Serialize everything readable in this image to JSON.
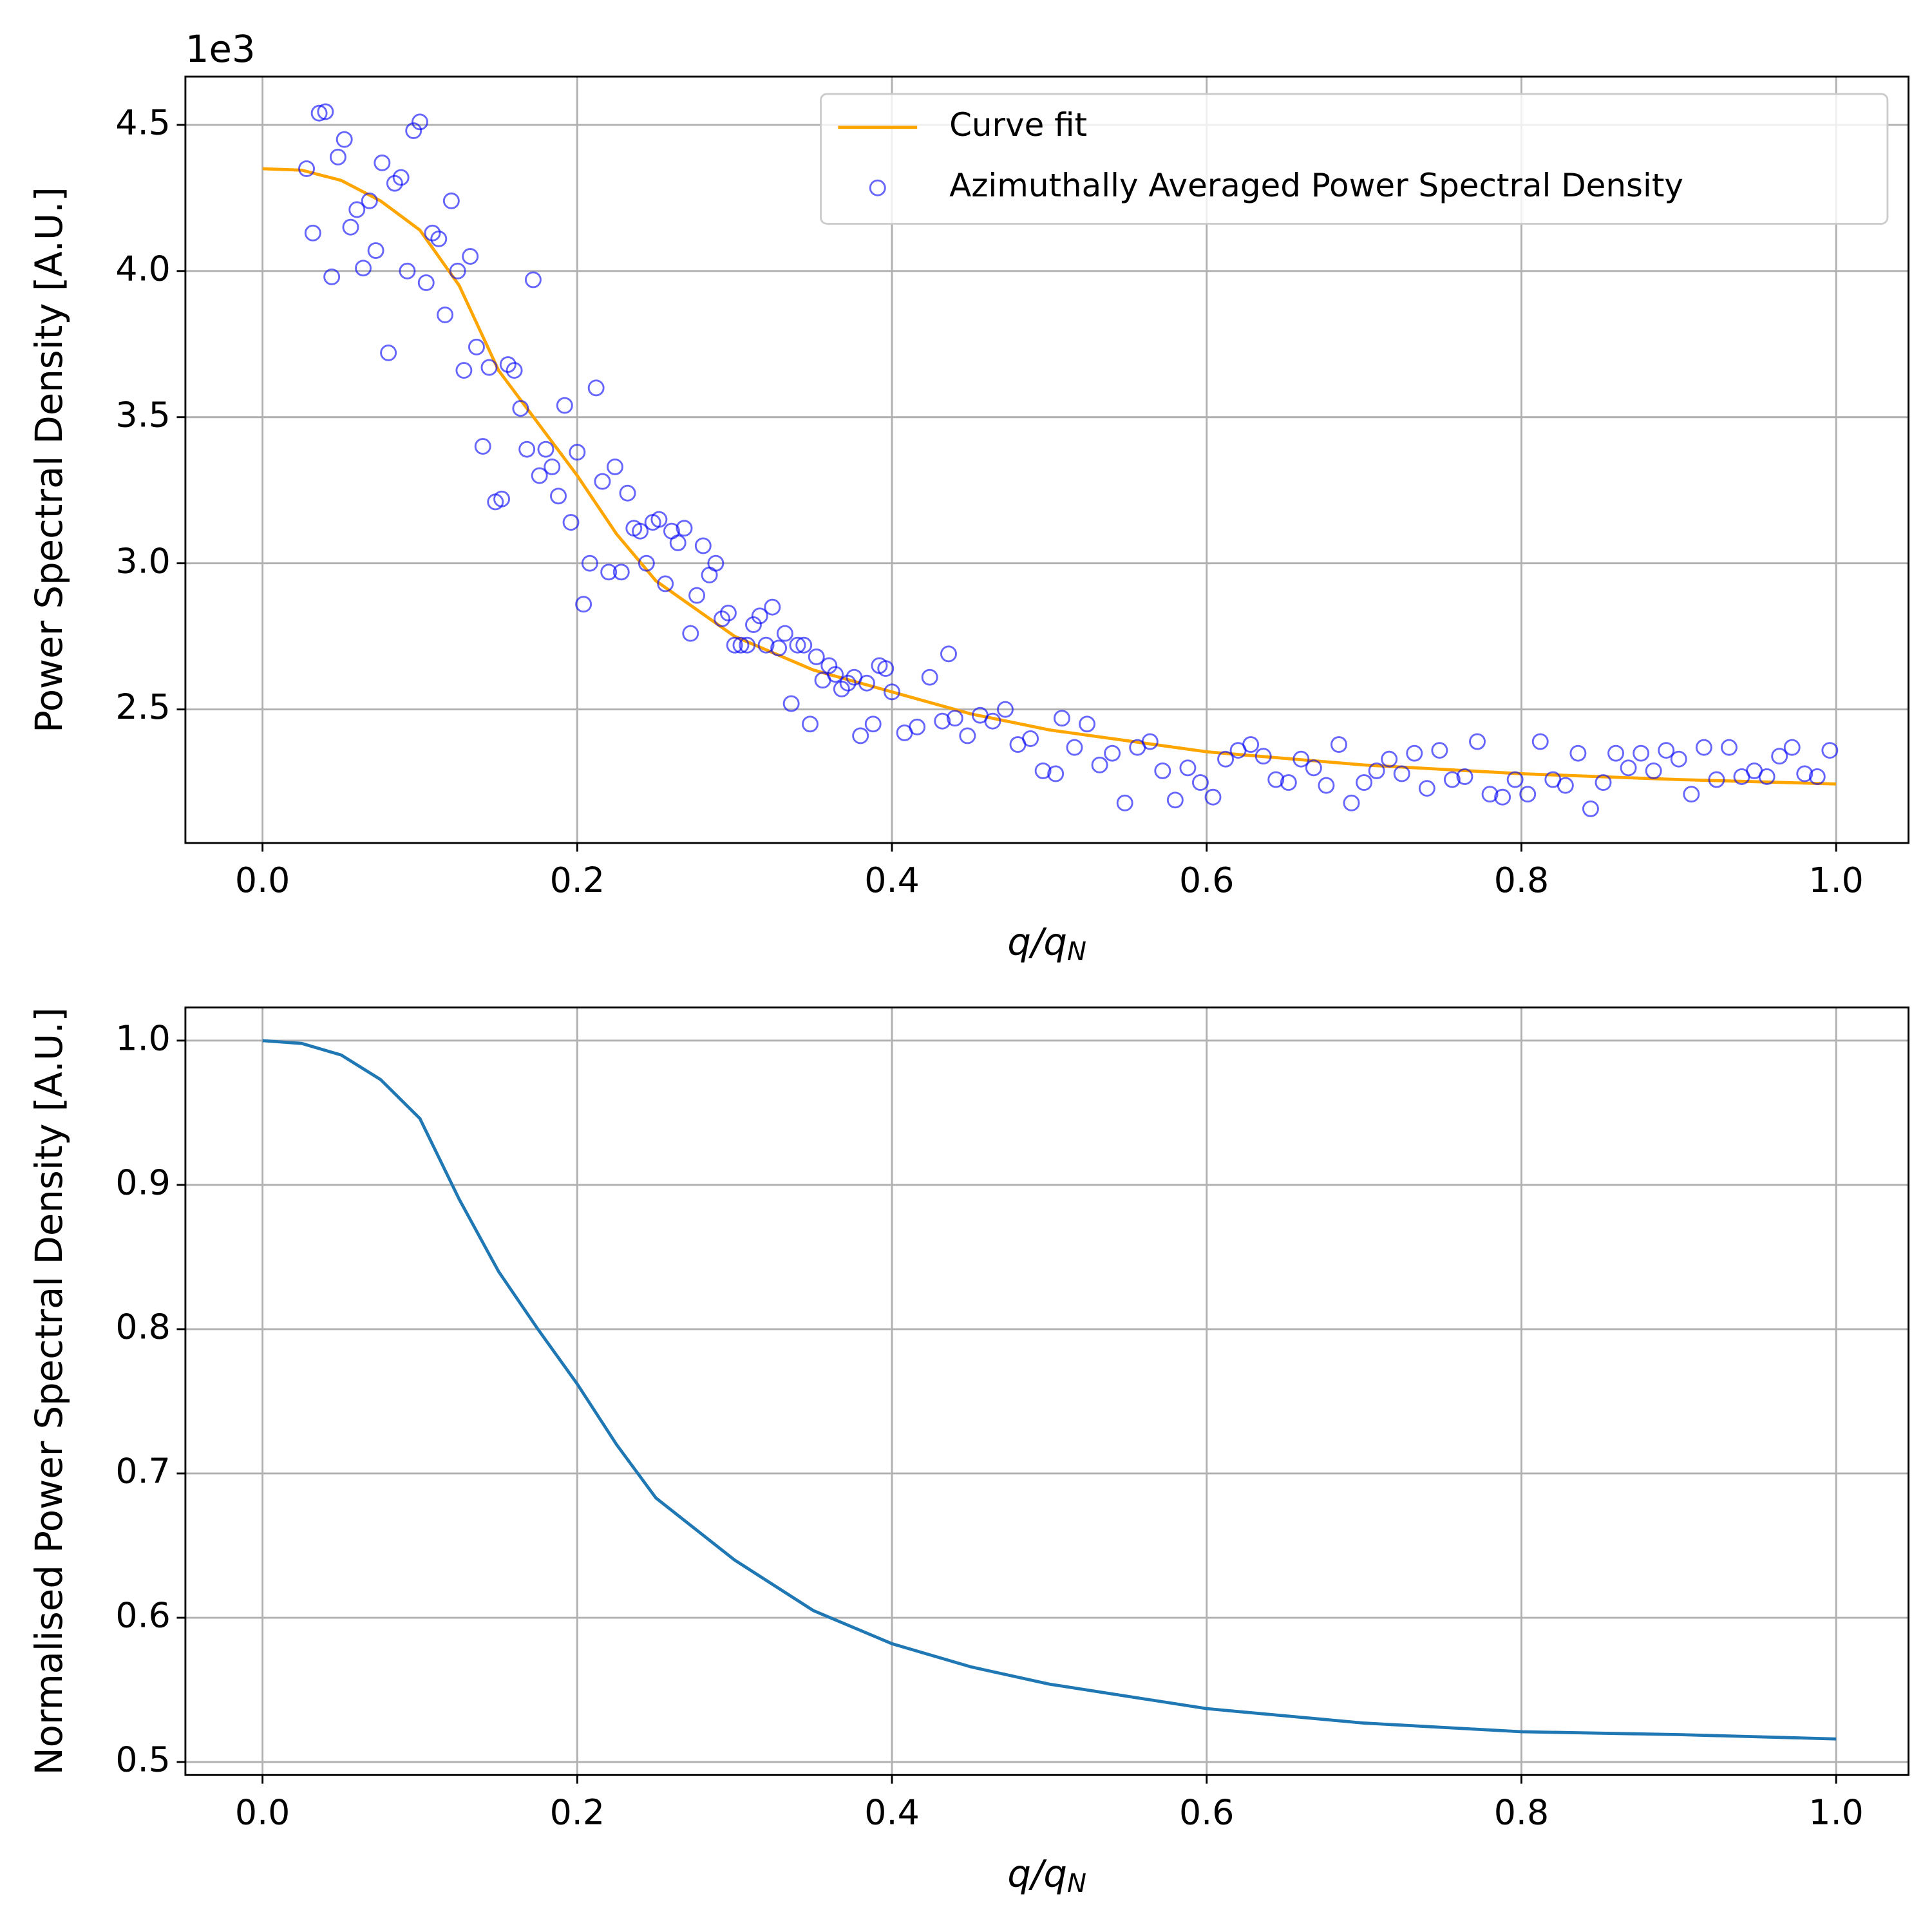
{
  "chart_data": [
    {
      "type": "scatter",
      "ylabel": "Power Spectral Density [A.U.]",
      "xlabel": "q/qN",
      "y_offset_label": "1e3",
      "xlim": [
        -0.049,
        1.046
      ],
      "ylim": [
        2.043,
        4.665
      ],
      "xticks": [
        {
          "value": 0,
          "label": "0.0"
        },
        0.2,
        0.4,
        0.6,
        0.8,
        {
          "value": 1,
          "label": "1.0"
        }
      ],
      "yticks": [
        2.5,
        {
          "value": 3,
          "label": "3.0"
        },
        3.5,
        {
          "value": 4,
          "label": "4.0"
        },
        4.5
      ],
      "grid": true,
      "legend": "upper right",
      "series": [
        {
          "name": "Curve fit",
          "type": "line",
          "color": "#ffa500",
          "x": [
            0,
            0.025,
            0.05,
            0.075,
            0.1,
            0.125,
            0.15,
            0.175,
            0.2,
            0.225,
            0.25,
            0.3,
            0.35,
            0.4,
            0.45,
            0.5,
            0.6,
            0.7,
            0.8,
            0.9,
            1.0
          ],
          "values": [
            4.35,
            4.345,
            4.31,
            4.24,
            4.14,
            3.95,
            3.66,
            3.48,
            3.3,
            3.1,
            2.94,
            2.75,
            2.635,
            2.56,
            2.485,
            2.43,
            2.355,
            2.31,
            2.28,
            2.26,
            2.245
          ]
        },
        {
          "name": "Azimuthally Averaged Power Spectral Density",
          "type": "scatter",
          "color": "#0000ff",
          "x": [
            0.028,
            0.032,
            0.036,
            0.04,
            0.044,
            0.048,
            0.052,
            0.056,
            0.06,
            0.064,
            0.068,
            0.072,
            0.076,
            0.08,
            0.084,
            0.088,
            0.092,
            0.096,
            0.1,
            0.104,
            0.108,
            0.112,
            0.116,
            0.12,
            0.124,
            0.128,
            0.132,
            0.136,
            0.14,
            0.144,
            0.148,
            0.152,
            0.156,
            0.16,
            0.164,
            0.168,
            0.172,
            0.176,
            0.18,
            0.184,
            0.188,
            0.192,
            0.196,
            0.2,
            0.204,
            0.208,
            0.212,
            0.216,
            0.22,
            0.224,
            0.228,
            0.232,
            0.236,
            0.24,
            0.244,
            0.248,
            0.252,
            0.256,
            0.26,
            0.264,
            0.268,
            0.272,
            0.276,
            0.28,
            0.284,
            0.288,
            0.292,
            0.296,
            0.3,
            0.304,
            0.308,
            0.312,
            0.316,
            0.32,
            0.324,
            0.328,
            0.332,
            0.336,
            0.34,
            0.344,
            0.348,
            0.352,
            0.356,
            0.36,
            0.364,
            0.368,
            0.372,
            0.376,
            0.38,
            0.384,
            0.388,
            0.392,
            0.396,
            0.4,
            0.408,
            0.416,
            0.424,
            0.432,
            0.436,
            0.44,
            0.448,
            0.456,
            0.464,
            0.472,
            0.48,
            0.488,
            0.496,
            0.504,
            0.508,
            0.516,
            0.524,
            0.532,
            0.54,
            0.548,
            0.556,
            0.564,
            0.572,
            0.58,
            0.588,
            0.596,
            0.604,
            0.612,
            0.62,
            0.628,
            0.636,
            0.644,
            0.652,
            0.66,
            0.668,
            0.676,
            0.684,
            0.692,
            0.7,
            0.708,
            0.716,
            0.724,
            0.732,
            0.74,
            0.748,
            0.756,
            0.764,
            0.772,
            0.78,
            0.788,
            0.796,
            0.804,
            0.812,
            0.82,
            0.828,
            0.836,
            0.844,
            0.852,
            0.86,
            0.868,
            0.876,
            0.884,
            0.892,
            0.9,
            0.908,
            0.916,
            0.924,
            0.932,
            0.94,
            0.948,
            0.956,
            0.964,
            0.972,
            0.98,
            0.988,
            0.996
          ],
          "values": [
            4.35,
            4.13,
            4.54,
            4.545,
            3.98,
            4.39,
            4.45,
            4.15,
            4.21,
            4.01,
            4.24,
            4.07,
            4.37,
            3.72,
            4.3,
            4.32,
            4.0,
            4.48,
            4.51,
            3.96,
            4.13,
            4.11,
            3.85,
            4.24,
            4.0,
            3.66,
            4.05,
            3.74,
            3.4,
            3.67,
            3.21,
            3.22,
            3.68,
            3.66,
            3.53,
            3.39,
            3.97,
            3.3,
            3.39,
            3.33,
            3.23,
            3.54,
            3.14,
            3.38,
            2.86,
            3.0,
            3.6,
            3.28,
            2.97,
            3.33,
            2.97,
            3.24,
            3.12,
            3.11,
            3.0,
            3.14,
            3.15,
            2.93,
            3.11,
            3.07,
            3.12,
            2.76,
            2.89,
            3.06,
            2.96,
            3.0,
            2.81,
            2.83,
            2.72,
            2.72,
            2.72,
            2.79,
            2.82,
            2.72,
            2.85,
            2.71,
            2.76,
            2.52,
            2.72,
            2.72,
            2.45,
            2.68,
            2.6,
            2.65,
            2.62,
            2.57,
            2.59,
            2.61,
            2.41,
            2.59,
            2.45,
            2.65,
            2.64,
            2.56,
            2.42,
            2.44,
            2.61,
            2.46,
            2.69,
            2.47,
            2.41,
            2.48,
            2.46,
            2.5,
            2.38,
            2.4,
            2.29,
            2.28,
            2.47,
            2.37,
            2.45,
            2.31,
            2.35,
            2.18,
            2.37,
            2.39,
            2.29,
            2.19,
            2.3,
            2.25,
            2.2,
            2.33,
            2.36,
            2.38,
            2.34,
            2.26,
            2.25,
            2.33,
            2.3,
            2.24,
            2.38,
            2.18,
            2.25,
            2.29,
            2.33,
            2.28,
            2.35,
            2.23,
            2.36,
            2.26,
            2.27,
            2.39,
            2.21,
            2.2,
            2.26,
            2.21,
            2.39,
            2.26,
            2.24,
            2.35,
            2.16,
            2.25,
            2.35,
            2.3,
            2.35,
            2.29,
            2.36,
            2.33,
            2.21,
            2.37,
            2.26,
            2.37,
            2.27,
            2.29,
            2.27,
            2.34,
            2.37,
            2.28,
            2.27,
            2.36
          ]
        }
      ]
    },
    {
      "type": "line",
      "ylabel": "Normalised Power Spectral Density [A.U.]",
      "xlabel": "q/qN",
      "xlim": [
        -0.049,
        1.046
      ],
      "ylim": [
        0.491,
        1.023
      ],
      "xticks": [
        {
          "value": 0,
          "label": "0.0"
        },
        0.2,
        0.4,
        0.6,
        0.8,
        {
          "value": 1,
          "label": "1.0"
        }
      ],
      "yticks": [
        0.5,
        0.6,
        0.7,
        0.8,
        0.9,
        {
          "value": 1,
          "label": "1.0"
        }
      ],
      "grid": true,
      "series": [
        {
          "color": "#1f77b4",
          "x": [
            0,
            0.025,
            0.05,
            0.075,
            0.1,
            0.125,
            0.15,
            0.175,
            0.2,
            0.225,
            0.25,
            0.3,
            0.35,
            0.4,
            0.45,
            0.5,
            0.6,
            0.7,
            0.8,
            0.9,
            1.0
          ],
          "values": [
            1.0,
            0.998,
            0.99,
            0.973,
            0.946,
            0.89,
            0.84,
            0.8,
            0.762,
            0.72,
            0.683,
            0.64,
            0.605,
            0.582,
            0.566,
            0.554,
            0.537,
            0.527,
            0.521,
            0.519,
            0.516
          ]
        }
      ]
    }
  ]
}
